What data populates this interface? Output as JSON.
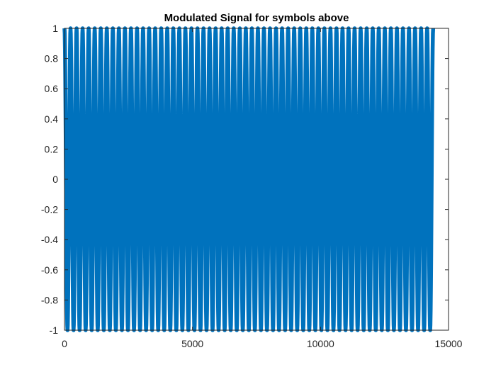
{
  "chart_data": {
    "type": "line",
    "title": "Modulated Signal for symbols above",
    "xlabel": "",
    "ylabel": "",
    "xlim": [
      0,
      15000
    ],
    "ylim": [
      -1,
      1
    ],
    "xticks": [
      0,
      5000,
      10000,
      15000
    ],
    "xtick_labels": [
      "0",
      "5000",
      "10000",
      "15000"
    ],
    "yticks": [
      1,
      0.8,
      0.6,
      0.4,
      0.2,
      0,
      -0.2,
      -0.4,
      -0.6,
      -0.8,
      -1
    ],
    "ytick_labels": [
      "1",
      "0.8",
      "0.6",
      "0.4",
      "0.2",
      "0",
      "-0.2",
      "-0.4",
      "-0.6",
      "-0.8",
      "-1"
    ],
    "grid": false,
    "box": true,
    "series": [
      {
        "color": "#0072BD",
        "x_range": [
          0,
          14400
        ],
        "amplitude": 1,
        "description_cycles_visible": 61,
        "zero_line": true
      }
    ]
  }
}
